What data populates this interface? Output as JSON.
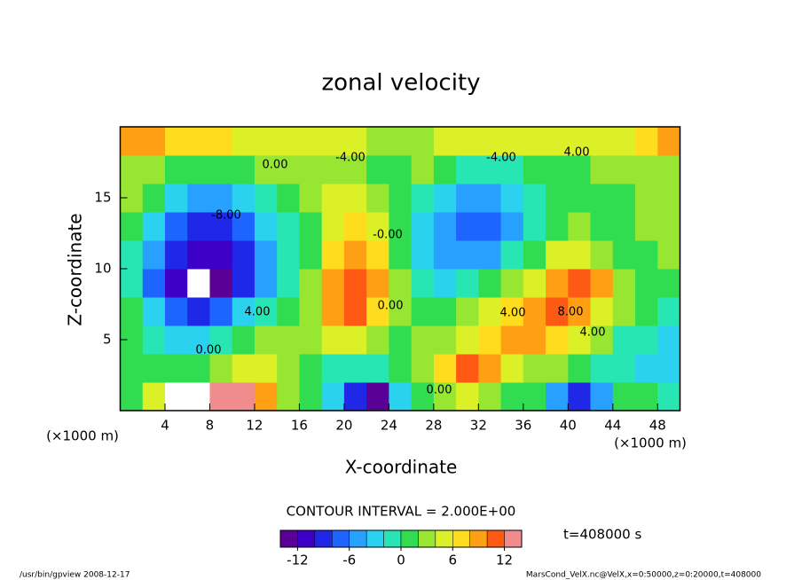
{
  "chart_data": {
    "type": "heatmap",
    "title": "zonal velocity",
    "x_label": "X-coordinate",
    "y_label": "Z-coordinate",
    "x_unit": "(×1000 m)",
    "y_unit": "(×1000 m)",
    "xlim": [
      0,
      50
    ],
    "ylim": [
      0,
      20
    ],
    "xticks": [
      4,
      8,
      12,
      16,
      20,
      24,
      28,
      32,
      36,
      40,
      44,
      48
    ],
    "yticks": [
      5,
      10,
      15
    ],
    "x": [
      1,
      3,
      5,
      7,
      9,
      11,
      13,
      15,
      17,
      19,
      21,
      23,
      25,
      27,
      29,
      31,
      33,
      35,
      37,
      39,
      41,
      43,
      45,
      47,
      49
    ],
    "y": [
      1,
      3,
      5,
      7,
      9,
      11,
      13,
      15,
      17,
      19
    ],
    "z": [
      [
        0,
        4,
        16,
        16,
        14,
        12,
        8,
        2,
        0,
        -4,
        -10,
        -14,
        -4,
        0,
        2,
        4,
        2,
        0,
        0,
        -6,
        -10,
        -6,
        0,
        0,
        -2
      ],
      [
        0,
        0,
        0,
        0,
        2,
        4,
        4,
        2,
        0,
        -2,
        -2,
        -2,
        0,
        2,
        6,
        10,
        8,
        4,
        2,
        2,
        0,
        -2,
        -2,
        -4,
        -4
      ],
      [
        0,
        -2,
        -4,
        -4,
        -2,
        0,
        2,
        2,
        2,
        4,
        4,
        2,
        0,
        2,
        2,
        4,
        6,
        8,
        8,
        6,
        4,
        2,
        -2,
        -2,
        -4
      ],
      [
        0,
        -4,
        -8,
        -10,
        -8,
        -4,
        -2,
        0,
        2,
        8,
        10,
        6,
        2,
        0,
        0,
        2,
        4,
        6,
        8,
        10,
        8,
        4,
        2,
        0,
        -2
      ],
      [
        -2,
        -8,
        -12,
        -16,
        -14,
        -10,
        -6,
        -2,
        2,
        8,
        10,
        8,
        2,
        -2,
        -4,
        -2,
        0,
        2,
        4,
        8,
        10,
        8,
        2,
        0,
        0
      ],
      [
        -2,
        -6,
        -10,
        -12,
        -12,
        -10,
        -6,
        -2,
        0,
        6,
        8,
        6,
        0,
        -4,
        -6,
        -6,
        -6,
        -2,
        0,
        4,
        4,
        2,
        0,
        0,
        2
      ],
      [
        0,
        -4,
        -8,
        -10,
        -10,
        -8,
        -4,
        -2,
        0,
        4,
        6,
        4,
        0,
        -4,
        -6,
        -8,
        -8,
        -6,
        -2,
        0,
        2,
        0,
        0,
        2,
        2
      ],
      [
        2,
        0,
        -4,
        -6,
        -6,
        -4,
        -2,
        0,
        2,
        4,
        4,
        2,
        0,
        -2,
        -4,
        -6,
        -6,
        -4,
        -2,
        0,
        0,
        0,
        0,
        2,
        2
      ],
      [
        2,
        2,
        0,
        0,
        0,
        0,
        2,
        2,
        2,
        2,
        2,
        0,
        0,
        2,
        0,
        -2,
        -2,
        -2,
        0,
        0,
        0,
        2,
        2,
        2,
        2
      ],
      [
        8,
        8,
        6,
        6,
        6,
        4,
        4,
        4,
        4,
        4,
        4,
        2,
        2,
        2,
        4,
        4,
        4,
        4,
        4,
        4,
        4,
        4,
        4,
        6,
        8
      ]
    ],
    "colorbar": {
      "lim": [
        -14,
        14
      ],
      "ticks": [
        -12,
        -6,
        0,
        6,
        12
      ],
      "colors": [
        "#5a0096",
        "#3c00c8",
        "#1e28e6",
        "#1e64ff",
        "#28a0ff",
        "#2ad2f0",
        "#28e6b4",
        "#32dc50",
        "#96e632",
        "#dcf028",
        "#ffdc1e",
        "#ffa014",
        "#ff5a14",
        "#f08c8c"
      ]
    },
    "contour_labels": [
      "0.00",
      "-4.00",
      "-8.00",
      "4.00",
      "0.00",
      "-4.00",
      "0.00",
      "4.00",
      "8.00",
      "4.00",
      "0.00",
      "4.00",
      "-0.00"
    ],
    "contour_interval": "CONTOUR INTERVAL = 2.000E+00",
    "time_label": "t=408000 s",
    "footer_left": "/usr/bin/gpview   2008-12-17",
    "footer_right": "MarsCond_VelX.nc@VelX,x=0:50000,z=0:20000,t=408000"
  }
}
